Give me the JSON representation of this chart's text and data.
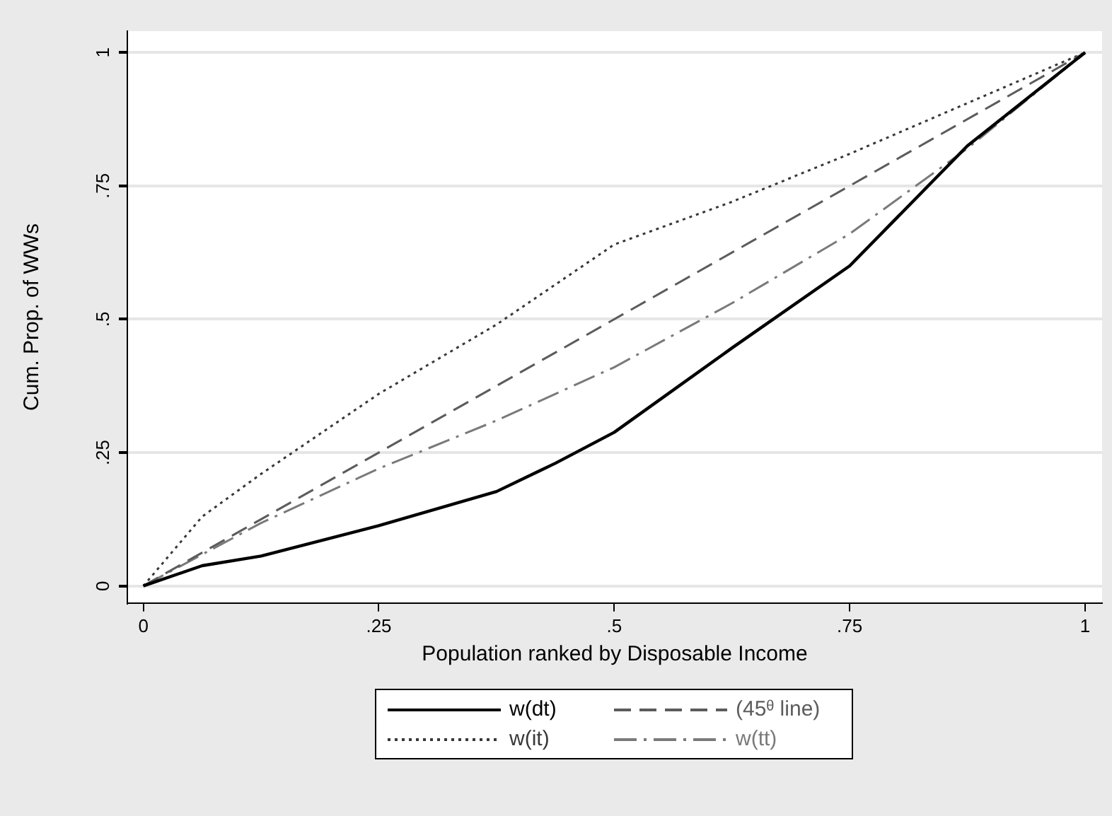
{
  "chart_data": {
    "type": "line",
    "xlabel": "Population ranked by Disposable Income",
    "ylabel": "Cum. Prop. of WWs",
    "xlim": [
      -0.017,
      1.018
    ],
    "ylim": [
      -0.032,
      1.04
    ],
    "xticks": [
      0,
      {
        "value": 0.25,
        "label": ".25"
      },
      {
        "value": 0.5,
        "label": ".5"
      },
      {
        "value": 0.75,
        "label": ".75"
      },
      1
    ],
    "yticks": [
      0,
      {
        "value": 0.25,
        "label": ".25"
      },
      {
        "value": 0.5,
        "label": ".5"
      },
      {
        "value": 0.75,
        "label": ".75"
      },
      1
    ],
    "grid": "y",
    "legend": "bottom",
    "marker": "none",
    "series": [
      {
        "name": "w(dt)",
        "color": "#000000",
        "line_style": "solid",
        "x": [
          0,
          0.0625,
          0.125,
          0.25,
          0.375,
          0.4375,
          0.5,
          0.625,
          0.75,
          0.875,
          1
        ],
        "values": [
          0,
          0.038,
          0.056,
          0.113,
          0.177,
          0.23,
          0.288,
          0.446,
          0.6,
          0.825,
          1
        ]
      },
      {
        "name": "(45ᶿ line)",
        "color": "#5c5c5c",
        "line_style": "dashed",
        "x": [
          0,
          1
        ],
        "values": [
          0,
          1
        ]
      },
      {
        "name": "w(it)",
        "color": "#383838",
        "line_style": "dotted",
        "x": [
          0,
          0.0625,
          0.125,
          0.25,
          0.375,
          0.5,
          0.625,
          0.75,
          0.875,
          1
        ],
        "values": [
          0,
          0.13,
          0.21,
          0.36,
          0.49,
          0.64,
          0.72,
          0.81,
          0.905,
          1
        ]
      },
      {
        "name": "w(tt)",
        "color": "#7a7a7a",
        "line_style": "dashdot",
        "x": [
          0,
          0.125,
          0.25,
          0.375,
          0.5,
          0.625,
          0.75,
          0.875,
          1
        ],
        "values": [
          0,
          0.118,
          0.22,
          0.31,
          0.41,
          0.53,
          0.66,
          0.82,
          1
        ]
      }
    ]
  }
}
